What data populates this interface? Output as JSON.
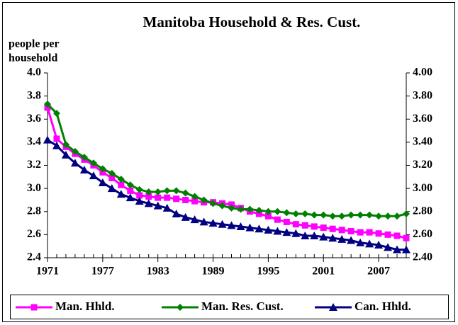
{
  "chart_data": {
    "type": "line",
    "title": "Manitoba Household & Res. Cust.",
    "ylabel": [
      "people per",
      "household"
    ],
    "x": [
      1971,
      1972,
      1973,
      1974,
      1975,
      1976,
      1977,
      1978,
      1979,
      1980,
      1981,
      1982,
      1983,
      1984,
      1985,
      1986,
      1987,
      1988,
      1989,
      1990,
      1991,
      1992,
      1993,
      1994,
      1995,
      1996,
      1997,
      1998,
      1999,
      2000,
      2001,
      2002,
      2003,
      2004,
      2005,
      2006,
      2007,
      2008,
      2009,
      2010
    ],
    "xlim": [
      1971,
      2010
    ],
    "xticks": [
      1971,
      1977,
      1983,
      1989,
      1995,
      2001,
      2007
    ],
    "ylim": [
      2.4,
      4.0
    ],
    "yticks": [
      2.4,
      2.6,
      2.8,
      {
        "value": 3.0,
        "label": "3.0"
      },
      3.2,
      3.4,
      3.6,
      3.8,
      {
        "value": 4.0,
        "label": "4.0"
      }
    ],
    "y2lim": [
      2.4,
      4.0
    ],
    "y2ticks": [
      {
        "value": 2.4,
        "label": "2.40"
      },
      {
        "value": 2.6,
        "label": "2.60"
      },
      {
        "value": 2.8,
        "label": "2.80"
      },
      {
        "value": 3.0,
        "label": "3.00"
      },
      {
        "value": 3.2,
        "label": "3.20"
      },
      {
        "value": 3.4,
        "label": "3.40"
      },
      {
        "value": 3.6,
        "label": "3.60"
      },
      {
        "value": 3.8,
        "label": "3.80"
      },
      {
        "value": 4.0,
        "label": "4.00"
      }
    ],
    "legend": "bottom",
    "series": [
      {
        "name": "Man. Hhld.",
        "color": "#ff00ff",
        "marker": "square",
        "values": [
          3.7,
          3.43,
          3.36,
          3.3,
          3.25,
          3.2,
          3.14,
          3.09,
          3.03,
          2.98,
          2.94,
          2.93,
          2.92,
          2.92,
          2.91,
          2.9,
          2.89,
          2.88,
          2.88,
          2.87,
          2.86,
          2.83,
          2.8,
          2.78,
          2.76,
          2.73,
          2.71,
          2.69,
          2.68,
          2.67,
          2.66,
          2.65,
          2.64,
          2.63,
          2.62,
          2.62,
          2.61,
          2.6,
          2.59,
          2.57
        ]
      },
      {
        "name": "Man. Res. Cust.",
        "color": "#008000",
        "marker": "diamond",
        "values": [
          3.73,
          3.65,
          3.38,
          3.32,
          3.27,
          3.22,
          3.17,
          3.13,
          3.08,
          3.03,
          2.99,
          2.97,
          2.97,
          2.98,
          2.98,
          2.96,
          2.93,
          2.9,
          2.87,
          2.85,
          2.83,
          2.82,
          2.82,
          2.81,
          2.8,
          2.8,
          2.79,
          2.78,
          2.78,
          2.77,
          2.77,
          2.76,
          2.76,
          2.77,
          2.77,
          2.77,
          2.76,
          2.76,
          2.76,
          2.78
        ]
      },
      {
        "name": "Can. Hhld.",
        "color": "#000080",
        "marker": "triangle",
        "values": [
          3.42,
          3.37,
          3.29,
          3.22,
          3.16,
          3.11,
          3.05,
          3.0,
          2.95,
          2.92,
          2.89,
          2.87,
          2.85,
          2.83,
          2.78,
          2.75,
          2.73,
          2.71,
          2.7,
          2.69,
          2.68,
          2.67,
          2.66,
          2.65,
          2.64,
          2.63,
          2.62,
          2.61,
          2.59,
          2.59,
          2.58,
          2.57,
          2.56,
          2.55,
          2.53,
          2.52,
          2.51,
          2.49,
          2.47,
          2.47
        ]
      }
    ]
  }
}
